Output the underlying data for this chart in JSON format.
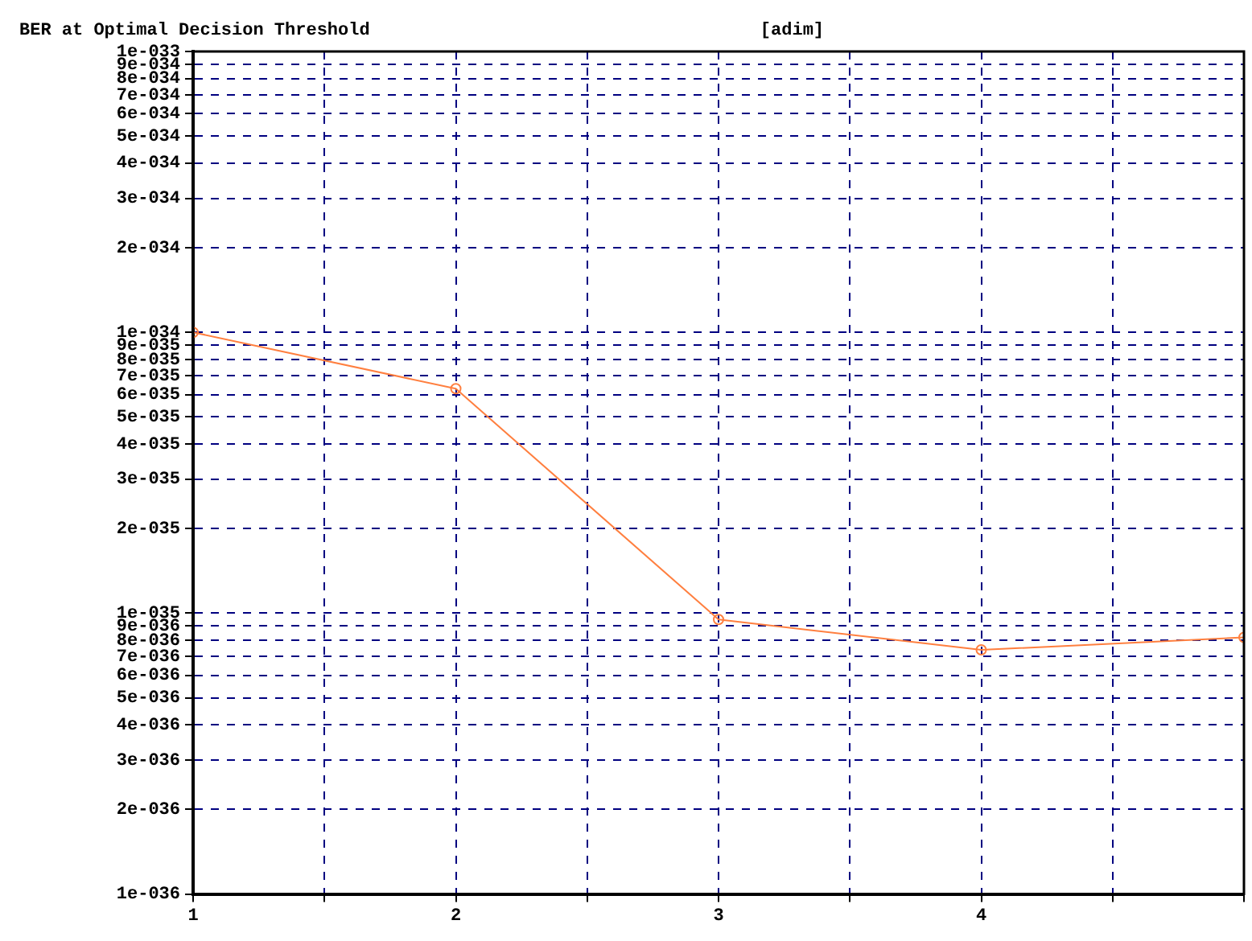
{
  "chart_data": {
    "type": "line",
    "title": "BER at Optimal Decision Threshold",
    "ylabel": "[adim]",
    "x": [
      1,
      2,
      3,
      4,
      5
    ],
    "series": [
      {
        "color": "#ff7f3f",
        "values": [
          1e-34,
          6.3e-35,
          9.5e-36,
          7.4e-36,
          8.2e-36
        ]
      }
    ],
    "xlim": [
      1,
      5
    ],
    "xticks": [
      1,
      {
        "value": 1.5,
        "label": null
      },
      2,
      {
        "value": 2.5,
        "label": null
      },
      3,
      {
        "value": 3.5,
        "label": null
      },
      4,
      {
        "value": 4.5,
        "label": null
      },
      {
        "value": 5,
        "label": null
      }
    ],
    "ylim": [
      1e-36,
      1e-33
    ],
    "log": "y",
    "yticks": [
      {
        "value": 1e-36,
        "label": "1e-036"
      },
      {
        "value": 2e-36,
        "label": "2e-036"
      },
      {
        "value": 3e-36,
        "label": "3e-036"
      },
      {
        "value": 4e-36,
        "label": "4e-036"
      },
      {
        "value": 5e-36,
        "label": "5e-036"
      },
      {
        "value": 6e-36,
        "label": "6e-036"
      },
      {
        "value": 7e-36,
        "label": "7e-036"
      },
      {
        "value": 8e-36,
        "label": "8e-036"
      },
      {
        "value": 9e-36,
        "label": "9e-036"
      },
      {
        "value": 1e-35,
        "label": "1e-035"
      },
      {
        "value": 2e-35,
        "label": "2e-035"
      },
      {
        "value": 3e-35,
        "label": "3e-035"
      },
      {
        "value": 4e-35,
        "label": "4e-035"
      },
      {
        "value": 5e-35,
        "label": "5e-035"
      },
      {
        "value": 6e-35,
        "label": "6e-035"
      },
      {
        "value": 7e-35,
        "label": "7e-035"
      },
      {
        "value": 8e-35,
        "label": "8e-035"
      },
      {
        "value": 9e-35,
        "label": "9e-035"
      },
      {
        "value": 1e-34,
        "label": "1e-034"
      },
      {
        "value": 2e-34,
        "label": "2e-034"
      },
      {
        "value": 3e-34,
        "label": "3e-034"
      },
      {
        "value": 4e-34,
        "label": "4e-034"
      },
      {
        "value": 5e-34,
        "label": "5e-034"
      },
      {
        "value": 6e-34,
        "label": "6e-034"
      },
      {
        "value": 7e-34,
        "label": "7e-034"
      },
      {
        "value": 8e-34,
        "label": "8e-034"
      },
      {
        "value": 9e-34,
        "label": "9e-034"
      },
      {
        "value": 1e-33,
        "label": "1e-033"
      }
    ],
    "grid": true,
    "legend": false,
    "marker": "circle",
    "line_style": "solid"
  }
}
